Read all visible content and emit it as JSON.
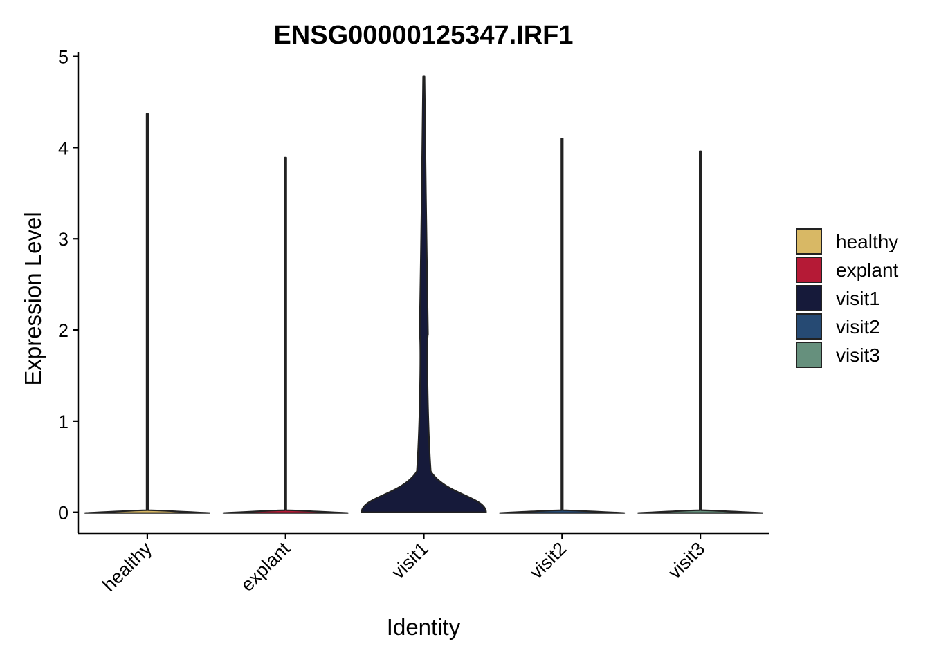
{
  "chart_data": {
    "type": "violin",
    "title": "ENSG00000125347.IRF1",
    "xlabel": "Identity",
    "ylabel": "Expression Level",
    "ylim": [
      -0.23,
      5.05
    ],
    "yticks": [
      0,
      1,
      2,
      3,
      4,
      5
    ],
    "categories": [
      "healthy",
      "explant",
      "visit1",
      "visit2",
      "visit3"
    ],
    "legend": {
      "position": "right",
      "entries": [
        {
          "label": "healthy",
          "color": "#D8B865"
        },
        {
          "label": "explant",
          "color": "#B51A36"
        },
        {
          "label": "visit1",
          "color": "#161A3A"
        },
        {
          "label": "visit2",
          "color": "#264A73"
        },
        {
          "label": "visit3",
          "color": "#66907D"
        }
      ]
    },
    "series": [
      {
        "name": "healthy",
        "color": "#D8B865",
        "max": 4.37
      },
      {
        "name": "explant",
        "color": "#B51A36",
        "max": 3.89
      },
      {
        "name": "visit1",
        "color": "#161A3A",
        "max": 4.78
      },
      {
        "name": "visit2",
        "color": "#264A73",
        "max": 4.1
      },
      {
        "name": "visit3",
        "color": "#66907D",
        "max": 3.96
      }
    ],
    "grid": false
  }
}
